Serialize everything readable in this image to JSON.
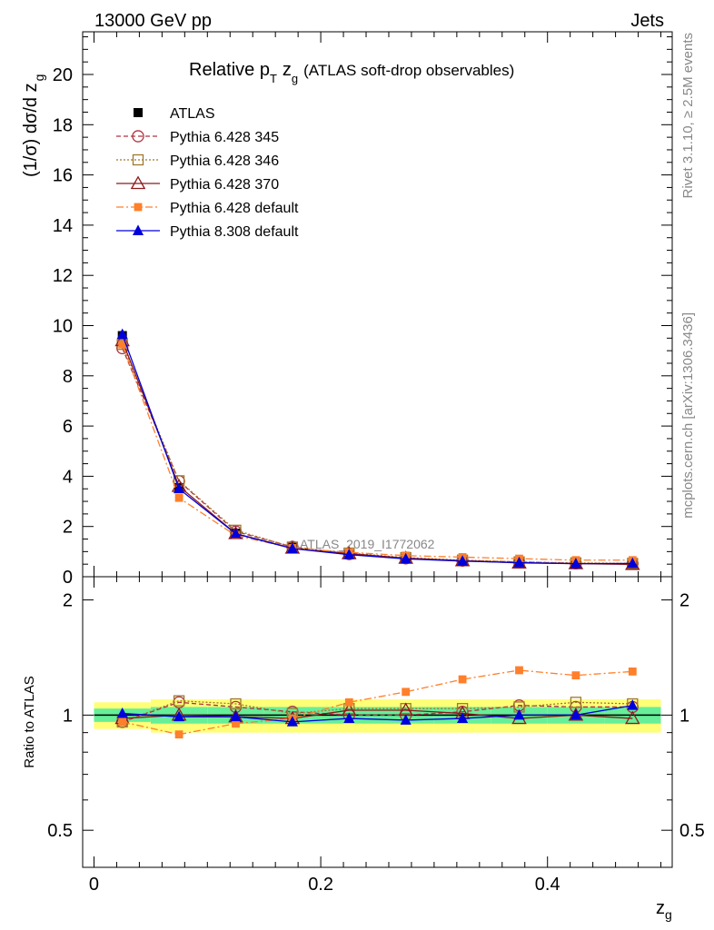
{
  "header": {
    "left": "13000 GeV pp",
    "right": "Jets"
  },
  "side": {
    "rivet": "Rivet 3.1.10, ≥ 2.5M events",
    "mcplots": "mcplots.cern.ch [arXiv:1306.3436]"
  },
  "chart_data": {
    "type": "line",
    "title_main": "Relative p",
    "title_sub_T": "T",
    "title_z": "z",
    "title_sub_g": "g",
    "title_rest": "(ATLAS soft-drop observables)",
    "watermark": "ATLAS_2019_I1772062",
    "xlabel": "z",
    "xlabel_sub": "g",
    "ylabel_main": "(1/σ) dσ/d z",
    "ylabel_sub": "g",
    "ratio_ylabel": "Ratio to ATLAS",
    "xlim": [
      -0.01,
      0.51
    ],
    "ylim": [
      0,
      21.7
    ],
    "ratio_ylim": [
      0.4,
      2.3
    ],
    "x_ticks": [
      {
        "v": 0,
        "label": "0"
      },
      {
        "v": 0.2,
        "label": "0.2"
      },
      {
        "v": 0.4,
        "label": "0.4"
      }
    ],
    "y_ticks": [
      {
        "v": 0,
        "label": "0"
      },
      {
        "v": 2,
        "label": "2"
      },
      {
        "v": 4,
        "label": "4"
      },
      {
        "v": 6,
        "label": "6"
      },
      {
        "v": 8,
        "label": "8"
      },
      {
        "v": 10,
        "label": "10"
      },
      {
        "v": 12,
        "label": "12"
      },
      {
        "v": 14,
        "label": "14"
      },
      {
        "v": 16,
        "label": "16"
      },
      {
        "v": 18,
        "label": "18"
      },
      {
        "v": 20,
        "label": "20"
      }
    ],
    "ratio_ticks_left": [
      {
        "v": 0.5,
        "label": "0.5"
      },
      {
        "v": 1,
        "label": "1"
      },
      {
        "v": 2,
        "label": "2"
      }
    ],
    "ratio_ticks_right": [
      {
        "v": 0.5,
        "label": "0.5"
      },
      {
        "v": 1,
        "label": "1"
      },
      {
        "v": 2,
        "label": "2"
      }
    ],
    "x": [
      0.025,
      0.075,
      0.125,
      0.175,
      0.225,
      0.275,
      0.325,
      0.375,
      0.425,
      0.475
    ],
    "data": {
      "name": "ATLAS",
      "values": [
        9.6,
        3.55,
        1.73,
        1.17,
        0.9,
        0.73,
        0.63,
        0.56,
        0.52,
        0.5
      ]
    },
    "band_inner": [
      0.04,
      0.05,
      0.05,
      0.05,
      0.05,
      0.05,
      0.05,
      0.05,
      0.05,
      0.05
    ],
    "band_outer": [
      0.08,
      0.1,
      0.1,
      0.1,
      0.1,
      0.1,
      0.1,
      0.1,
      0.1,
      0.1
    ],
    "series": [
      {
        "name": "Pythia 6.428 345",
        "color": "#b03040",
        "dash": "5,3",
        "marker": "circle-open",
        "values": [
          9.1,
          3.8,
          1.8,
          1.19,
          0.9,
          0.73,
          0.64,
          0.59,
          0.53,
          0.52
        ],
        "ratio": [
          0.96,
          1.08,
          1.05,
          1.02,
          1.0,
          1.0,
          1.02,
          1.06,
          1.05,
          1.05
        ]
      },
      {
        "name": "Pythia 6.428 346",
        "color": "#a0782c",
        "dash": "2,2",
        "marker": "square-open",
        "values": [
          9.25,
          3.82,
          1.85,
          1.18,
          0.94,
          0.76,
          0.66,
          0.59,
          0.55,
          0.53
        ],
        "ratio": [
          0.96,
          1.09,
          1.07,
          1.01,
          1.04,
          1.04,
          1.04,
          1.05,
          1.08,
          1.07
        ]
      },
      {
        "name": "Pythia 6.428 370",
        "color": "#8b1a1a",
        "dash": "",
        "marker": "triangle-open",
        "values": [
          9.4,
          3.6,
          1.72,
          1.14,
          0.92,
          0.74,
          0.64,
          0.55,
          0.52,
          0.49
        ],
        "ratio": [
          0.98,
          1.0,
          0.99,
          0.98,
          1.03,
          1.03,
          1.01,
          0.98,
          1.0,
          0.98
        ]
      },
      {
        "name": "Pythia 6.428 default",
        "color": "#ff7f2a",
        "dash": "8,3,2,3",
        "marker": "square-filled",
        "values": [
          9.25,
          3.14,
          1.64,
          1.14,
          0.97,
          0.84,
          0.78,
          0.72,
          0.66,
          0.66
        ],
        "ratio": [
          0.96,
          0.89,
          0.95,
          0.98,
          1.08,
          1.15,
          1.24,
          1.31,
          1.27,
          1.3
        ]
      },
      {
        "name": "Pythia 8.308 default",
        "color": "#0000dd",
        "dash": "",
        "marker": "triangle-filled",
        "values": [
          9.65,
          3.5,
          1.71,
          1.12,
          0.88,
          0.71,
          0.62,
          0.56,
          0.52,
          0.53
        ],
        "ratio": [
          1.01,
          0.99,
          0.99,
          0.96,
          0.98,
          0.97,
          0.98,
          1.0,
          1.0,
          1.06
        ]
      }
    ]
  }
}
